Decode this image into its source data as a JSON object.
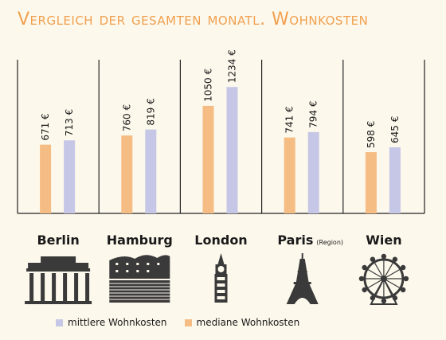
{
  "title": "Vergleich der gesamten monatl. Wohnkosten",
  "colors": {
    "median": "#f5bd83",
    "mean": "#c6c7e6",
    "title": "#f0a050",
    "icon": "#3a3a3a",
    "axis": "#222222"
  },
  "chart_data": {
    "type": "bar",
    "title": "Vergleich der gesamten monatl. Wohnkosten",
    "categories": [
      "Berlin",
      "Hamburg",
      "London",
      "Paris",
      "Wien"
    ],
    "category_suffix": [
      "",
      "",
      "",
      "(Region)",
      ""
    ],
    "icons": [
      "brandenburg-gate-icon",
      "elbphilharmonie-icon",
      "big-ben-icon",
      "eiffel-tower-icon",
      "ferris-wheel-icon"
    ],
    "series": [
      {
        "name": "mediane Wohnkosten",
        "values": [
          671,
          760,
          1050,
          741,
          598
        ],
        "labels": [
          "671 €",
          "760 €",
          "1050 €",
          "741 €",
          "598 €"
        ]
      },
      {
        "name": "mittlere Wohnkosten",
        "values": [
          713,
          819,
          1234,
          794,
          645
        ],
        "labels": [
          "713 €",
          "819 €",
          "1234 €",
          "794 €",
          "645 €"
        ]
      }
    ],
    "ylim": [
      0,
      1500
    ],
    "grid": false,
    "legend_position": "bottom"
  }
}
